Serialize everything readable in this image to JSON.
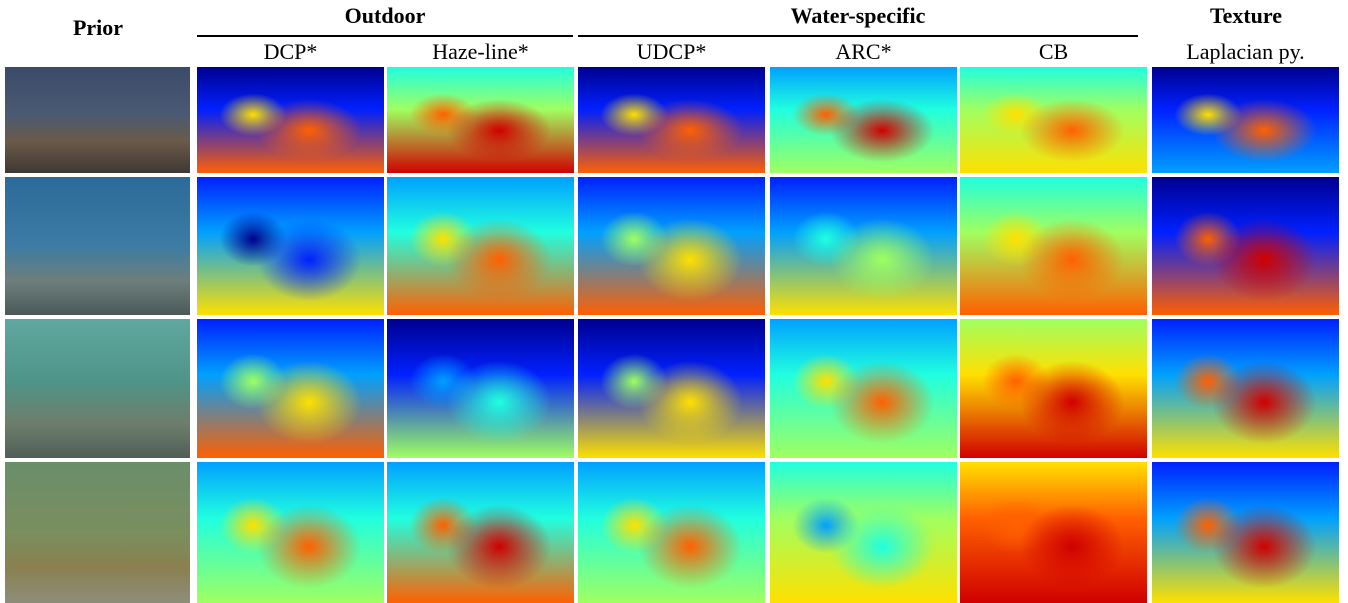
{
  "headers": {
    "prior": "Prior",
    "outdoor": "Outdoor",
    "water_specific": "Water-specific",
    "texture": "Texture"
  },
  "columns": [
    "DCP*",
    "Haze-line*",
    "UDCP*",
    "ARC*",
    "CB",
    "Laplacian py."
  ]
}
